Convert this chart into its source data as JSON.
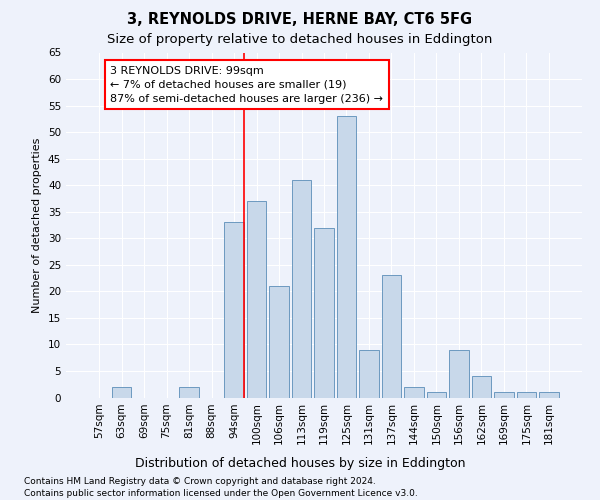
{
  "title": "3, REYNOLDS DRIVE, HERNE BAY, CT6 5FG",
  "subtitle": "Size of property relative to detached houses in Eddington",
  "xlabel": "Distribution of detached houses by size in Eddington",
  "ylabel": "Number of detached properties",
  "categories": [
    "57sqm",
    "63sqm",
    "69sqm",
    "75sqm",
    "81sqm",
    "88sqm",
    "94sqm",
    "100sqm",
    "106sqm",
    "113sqm",
    "119sqm",
    "125sqm",
    "131sqm",
    "137sqm",
    "144sqm",
    "150sqm",
    "156sqm",
    "162sqm",
    "169sqm",
    "175sqm",
    "181sqm"
  ],
  "values": [
    0,
    2,
    0,
    0,
    2,
    0,
    33,
    37,
    21,
    41,
    32,
    53,
    9,
    23,
    2,
    1,
    9,
    4,
    1,
    1,
    1
  ],
  "bar_color": "#c8d8ea",
  "bar_edge_color": "#5b8db8",
  "vline_x_index": 6,
  "vline_color": "red",
  "annotation_text": "3 REYNOLDS DRIVE: 99sqm\n← 7% of detached houses are smaller (19)\n87% of semi-detached houses are larger (236) →",
  "annotation_box_color": "white",
  "annotation_box_edge_color": "red",
  "ylim": [
    0,
    65
  ],
  "yticks": [
    0,
    5,
    10,
    15,
    20,
    25,
    30,
    35,
    40,
    45,
    50,
    55,
    60,
    65
  ],
  "background_color": "#eef2fb",
  "grid_color": "#ffffff",
  "footer_line1": "Contains HM Land Registry data © Crown copyright and database right 2024.",
  "footer_line2": "Contains public sector information licensed under the Open Government Licence v3.0.",
  "title_fontsize": 10.5,
  "subtitle_fontsize": 9.5,
  "xlabel_fontsize": 9,
  "ylabel_fontsize": 8,
  "tick_fontsize": 7.5,
  "annotation_fontsize": 8,
  "footer_fontsize": 6.5
}
